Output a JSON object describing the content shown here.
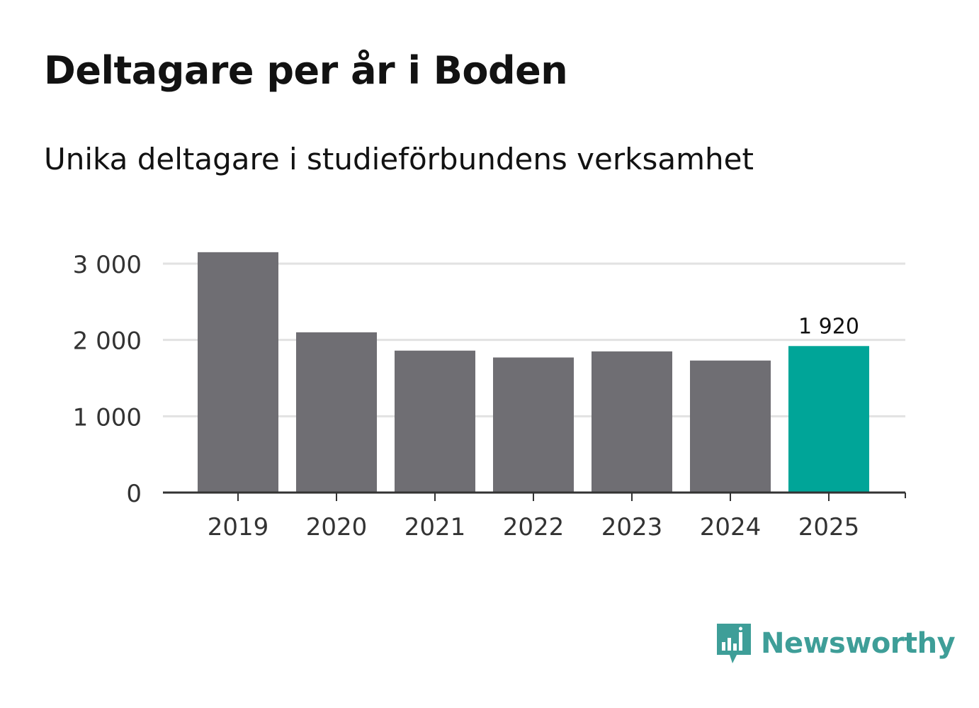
{
  "title": "Deltagare per år i Boden",
  "subtitle": "Unika deltagare i studieförbundens verksamhet",
  "chart_data": {
    "type": "bar",
    "categories": [
      "2019",
      "2020",
      "2021",
      "2022",
      "2023",
      "2024",
      "2025"
    ],
    "values": [
      3150,
      2100,
      1860,
      1770,
      1850,
      1730,
      1920
    ],
    "ylim": [
      0,
      3000
    ],
    "yticks": [
      0,
      1000,
      2000,
      3000
    ],
    "ytick_labels": [
      "0",
      "1 000",
      "2 000",
      "3 000"
    ],
    "data_labels": [
      {
        "category": "2025",
        "text": "1 920"
      }
    ],
    "highlight_category": "2025",
    "grid": true,
    "xlabel": "",
    "ylabel": "",
    "colors": {
      "bar": "#6f6e73",
      "highlight": "#00a598",
      "grid": "#e2e2e2",
      "axis": "#333333",
      "tick_text": "#333333"
    }
  },
  "brand": {
    "name": "Newsworthy",
    "icon": "newsworthy-logo-icon",
    "color": "#3e9e98"
  }
}
